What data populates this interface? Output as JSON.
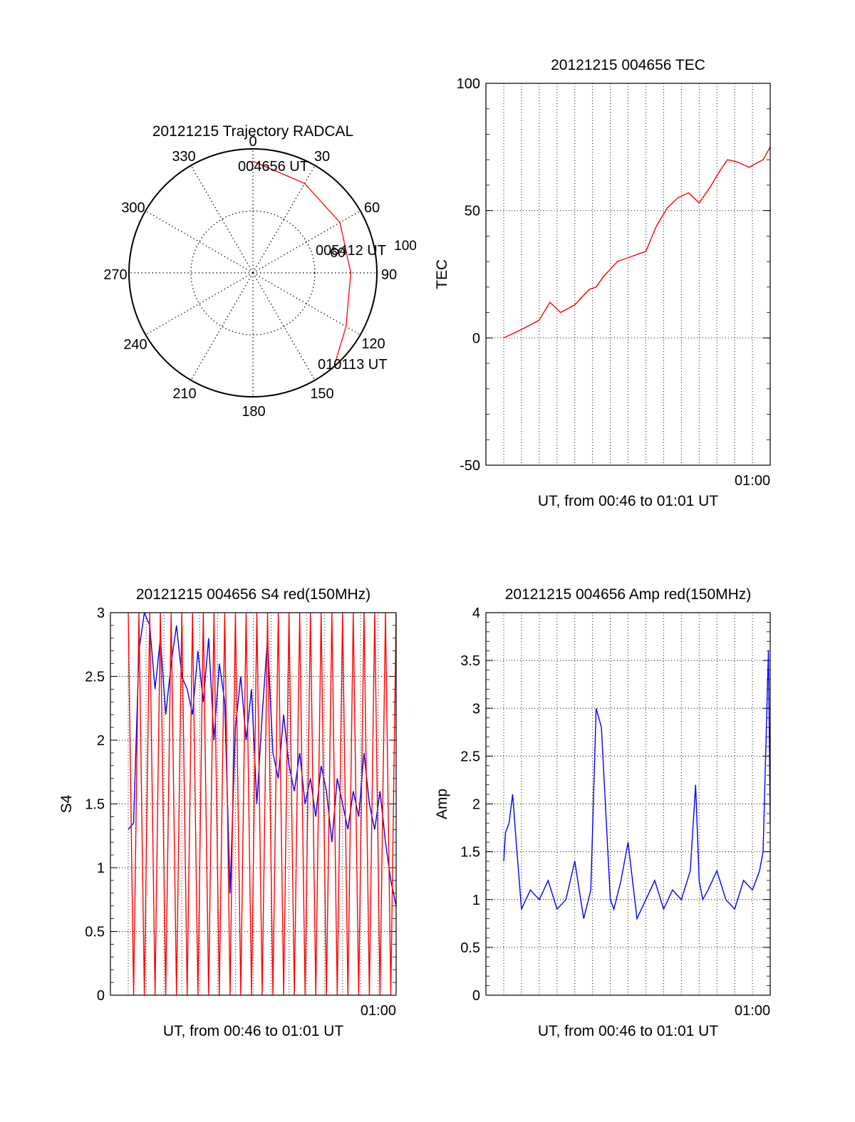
{
  "colors": {
    "red": "#ff0000",
    "blue": "#0000ff",
    "axis": "#000000"
  },
  "chart_data": [
    {
      "type": "polar",
      "title": "20121215 Trajectory RADCAL",
      "angle_labels": [
        "0",
        "30",
        "60",
        "90",
        "120",
        "150",
        "180",
        "210",
        "240",
        "270",
        "300",
        "330"
      ],
      "radial_labels": [
        "60",
        "100"
      ],
      "r_max": 90,
      "grid": true,
      "trajectory": {
        "color": "red",
        "points": [
          {
            "az": 0,
            "r": 81
          },
          {
            "az": 30,
            "r": 75
          },
          {
            "az": 60,
            "r": 73
          },
          {
            "az": 90,
            "r": 71
          },
          {
            "az": 120,
            "r": 78
          },
          {
            "az": 137,
            "r": 88
          }
        ]
      },
      "annotations": [
        "004656 UT",
        "005412 UT",
        "010113 UT"
      ]
    },
    {
      "type": "line",
      "title": "20121215 004656 TEC",
      "xlabel": "UT, from 00:46 to 01:01 UT",
      "ylabel": "TEC",
      "xlim": [
        "00:46",
        "01:01"
      ],
      "ylim": [
        -50,
        100
      ],
      "yticks": [
        "100",
        "50",
        "0",
        "-50"
      ],
      "xtick_label": "01:00",
      "grid": true,
      "series": [
        {
          "color": "red",
          "x": [
            0,
            0.6,
            1.2,
            2.0,
            2.6,
            3.2,
            4.0,
            4.8,
            5.2,
            5.6,
            6.4,
            7.2,
            8.0,
            8.6,
            9.2,
            9.8,
            10.4,
            11.0,
            11.6,
            12.2,
            12.6,
            13.2,
            13.8,
            14.6,
            15.0
          ],
          "y": [
            0,
            2,
            4,
            7,
            14,
            10,
            13,
            19,
            20,
            24,
            30,
            32,
            34,
            44,
            51,
            55,
            57,
            53,
            59,
            66,
            70,
            69,
            67,
            70,
            75
          ]
        }
      ]
    },
    {
      "type": "line",
      "title": "20121215 004656 S4 red(150MHz)",
      "xlabel": "UT, from 00:46 to 01:01 UT",
      "ylabel": "S4",
      "xlim": [
        "00:46",
        "01:01"
      ],
      "ylim": [
        0,
        3
      ],
      "yticks": [
        "3",
        "2.5",
        "2",
        "1.5",
        "1",
        "0.5",
        "0"
      ],
      "xtick_label": "01:00",
      "grid": true,
      "series": [
        {
          "color": "blue",
          "x": [
            0,
            0.3,
            0.6,
            0.9,
            1.2,
            1.5,
            1.8,
            2.1,
            2.4,
            2.7,
            3.0,
            3.3,
            3.6,
            3.9,
            4.2,
            4.5,
            4.8,
            5.1,
            5.4,
            5.7,
            6.0,
            6.3,
            6.6,
            6.9,
            7.2,
            7.5,
            7.8,
            8.1,
            8.4,
            8.7,
            9.0,
            9.3,
            9.6,
            9.9,
            10.2,
            10.5,
            10.8,
            11.1,
            11.4,
            11.7,
            12.0,
            12.3,
            12.6,
            12.9,
            13.2,
            13.5,
            13.8,
            14.1,
            14.4,
            14.7,
            15.0
          ],
          "y": [
            1.3,
            1.35,
            2.7,
            3.0,
            2.9,
            2.4,
            2.8,
            2.2,
            2.6,
            2.9,
            2.5,
            2.4,
            2.2,
            2.7,
            2.3,
            2.8,
            2.0,
            2.6,
            2.3,
            0.8,
            2.1,
            2.5,
            2.0,
            2.4,
            1.5,
            2.2,
            2.8,
            1.9,
            1.7,
            2.2,
            1.8,
            1.6,
            1.9,
            1.5,
            1.7,
            1.4,
            1.8,
            1.6,
            1.2,
            1.7,
            1.5,
            1.3,
            1.6,
            1.4,
            1.9,
            1.5,
            1.3,
            1.6,
            1.2,
            0.9,
            0.7
          ]
        },
        {
          "color": "red",
          "x": [
            0,
            0.3,
            0.6,
            0.9,
            1.2,
            1.5,
            1.8,
            2.1,
            2.4,
            2.7,
            3.0,
            3.3,
            3.6,
            3.9,
            4.2,
            4.5,
            4.8,
            5.1,
            5.4,
            5.7,
            6.0,
            6.3,
            6.6,
            6.9,
            7.2,
            7.5,
            7.8,
            8.1,
            8.4,
            8.7,
            9.0,
            9.3,
            9.6,
            9.9,
            10.2,
            10.5,
            10.8,
            11.1,
            11.4,
            11.7,
            12.0,
            12.3,
            12.6,
            12.9,
            13.2,
            13.5,
            13.8,
            14.1,
            14.4,
            14.7,
            15.0
          ],
          "y": [
            3,
            0,
            3,
            0,
            3,
            0,
            3,
            0,
            3,
            0,
            3,
            0,
            3,
            0,
            3,
            0,
            3,
            0,
            3,
            0,
            3,
            0,
            3,
            0,
            3,
            0,
            3,
            0,
            3,
            0,
            3,
            0,
            3,
            0,
            3,
            0,
            3,
            0,
            3,
            0,
            3,
            0,
            3,
            0,
            3,
            0,
            3,
            0,
            3,
            0,
            3
          ]
        }
      ]
    },
    {
      "type": "line",
      "title": "20121215 004656 Amp red(150MHz)",
      "xlabel": "UT, from 00:46 to 01:01 UT",
      "ylabel": "Amp",
      "xlim": [
        "00:46",
        "01:01"
      ],
      "ylim": [
        0,
        4
      ],
      "yticks": [
        "4",
        "3.5",
        "3",
        "2.5",
        "2",
        "1.5",
        "1",
        "0.5",
        "0"
      ],
      "xtick_label": "01:00",
      "grid": true,
      "series": [
        {
          "color": "blue",
          "x": [
            0,
            0.1,
            0.3,
            0.5,
            0.7,
            1.0,
            1.5,
            2.0,
            2.5,
            3.0,
            3.5,
            4.0,
            4.5,
            4.9,
            5.2,
            5.5,
            6.0,
            6.2,
            6.6,
            7.0,
            7.5,
            8.0,
            8.5,
            9.0,
            9.5,
            10.0,
            10.5,
            10.8,
            11.0,
            11.2,
            11.5,
            12.0,
            12.5,
            13.0,
            13.5,
            14.0,
            14.4,
            14.6,
            14.8,
            14.9,
            15.0
          ],
          "y": [
            1.4,
            1.7,
            1.8,
            2.1,
            1.6,
            0.9,
            1.1,
            1.0,
            1.2,
            0.9,
            1.0,
            1.4,
            0.8,
            1.1,
            3.0,
            2.8,
            1.0,
            0.9,
            1.2,
            1.6,
            0.8,
            1.0,
            1.2,
            0.9,
            1.1,
            1.0,
            1.3,
            2.2,
            1.2,
            1.0,
            1.1,
            1.3,
            1.0,
            0.9,
            1.2,
            1.1,
            1.3,
            1.5,
            2.9,
            3.6,
            1.8
          ]
        }
      ]
    }
  ]
}
